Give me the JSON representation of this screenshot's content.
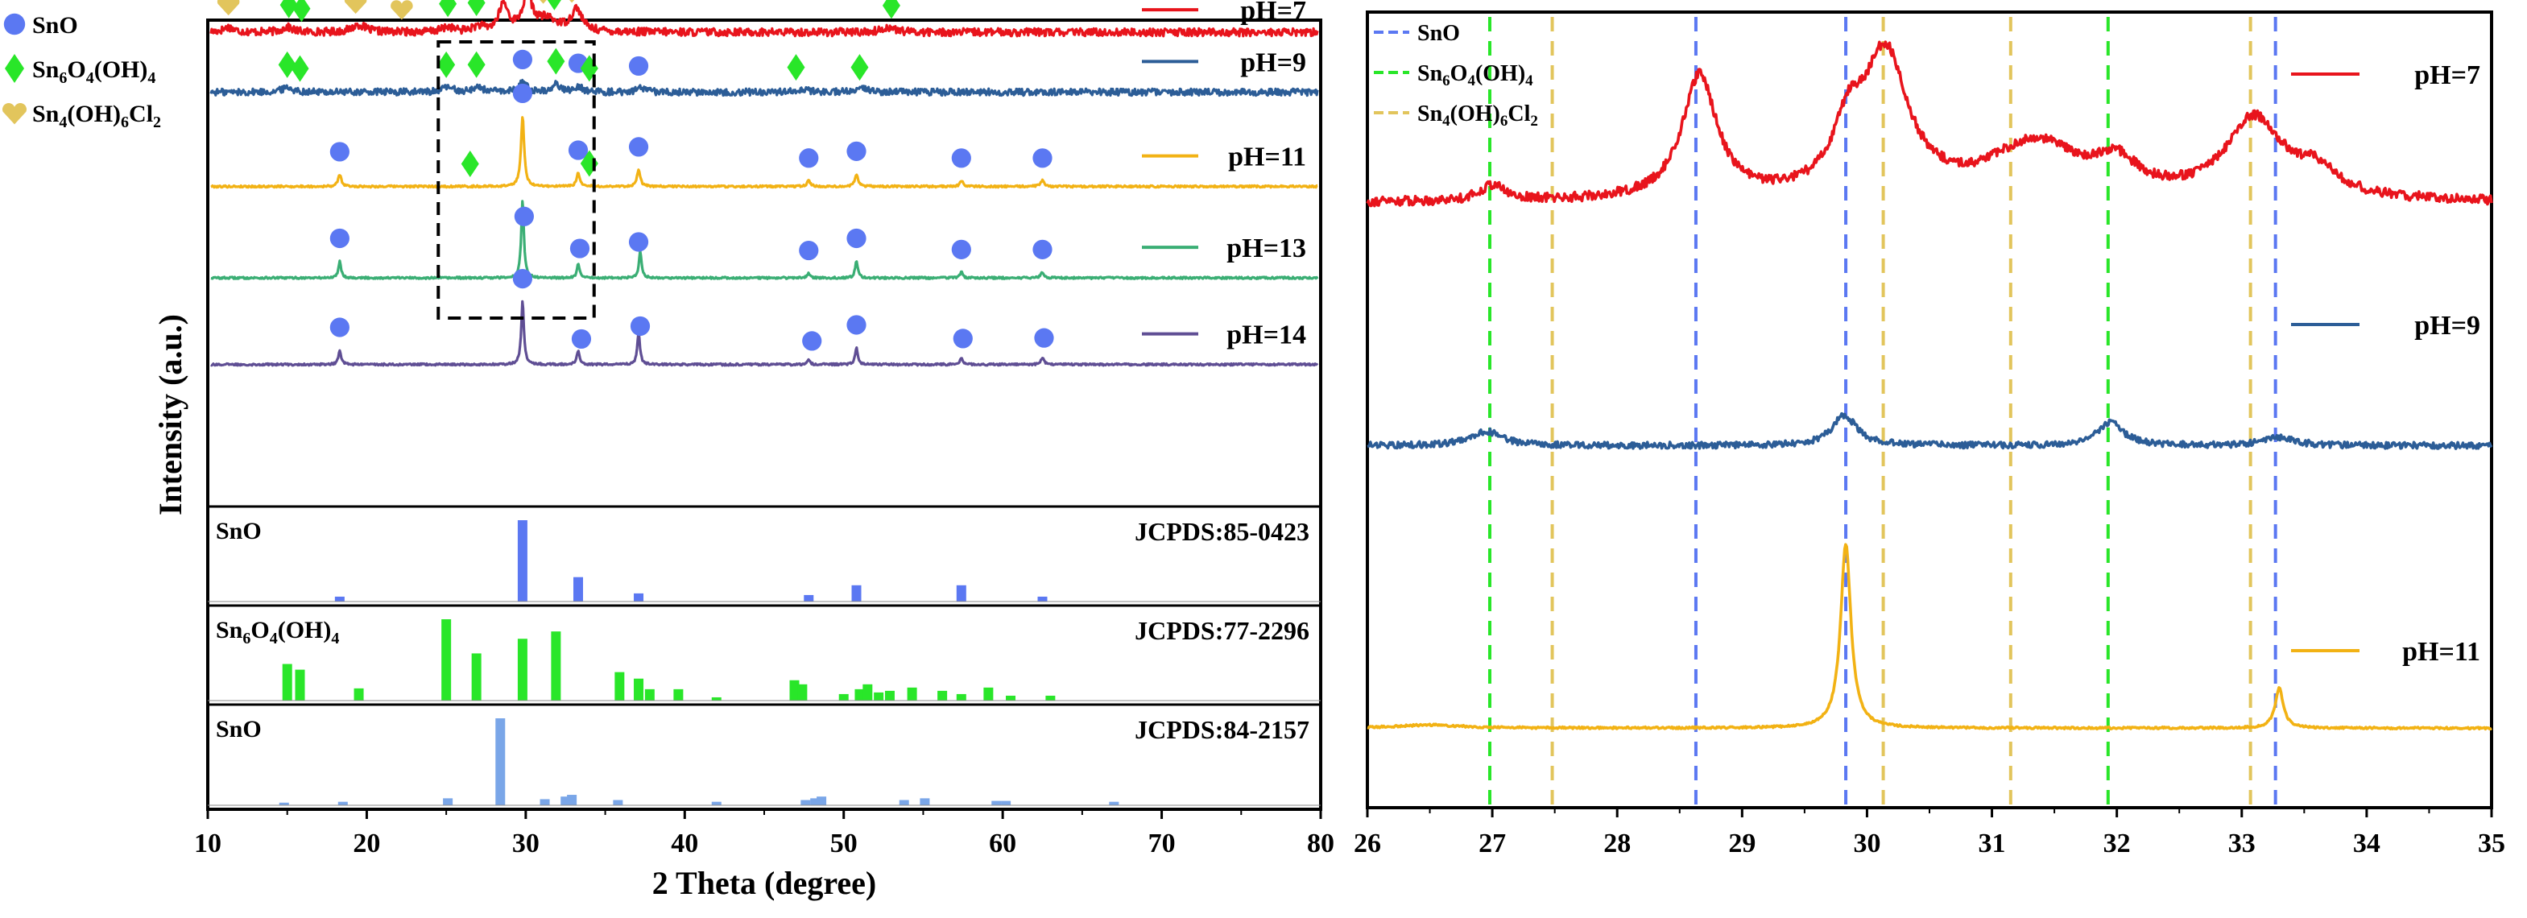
{
  "chart_data": [
    {
      "type": "line",
      "title": "",
      "xlabel": "2 Theta (degree)",
      "ylabel": "Intensity (a.u.)",
      "xlim": [
        10,
        80
      ],
      "x_ticks": [
        "10",
        "20",
        "30",
        "40",
        "50",
        "60",
        "70",
        "80"
      ],
      "legend": {
        "placement": "top-left",
        "entries": [
          {
            "marker": "circle",
            "color": "#5b78f2",
            "label_main": "SnO",
            "label_parts": [
              [
                "SnO",
                ""
              ]
            ]
          },
          {
            "marker": "diamond",
            "color": "#29e629",
            "label_main": "Sn6O4(OH)4",
            "label_parts": [
              [
                "Sn",
                ""
              ],
              [
                "6",
                "sub"
              ],
              [
                "O",
                ""
              ],
              [
                "4",
                "sub"
              ],
              [
                "(OH)",
                ""
              ],
              [
                "4",
                "sub"
              ]
            ]
          },
          {
            "marker": "heart",
            "color": "#e2c55c",
            "label_main": "Sn4(OH)6Cl2",
            "label_parts": [
              [
                "Sn",
                ""
              ],
              [
                "4",
                "sub"
              ],
              [
                "(OH)",
                ""
              ],
              [
                "6",
                "sub"
              ],
              [
                "Cl",
                ""
              ],
              [
                "2",
                "sub"
              ]
            ]
          }
        ]
      },
      "series": [
        {
          "name": "pH=7",
          "color": "#e8141c",
          "baseline": 0.975,
          "noise": 0.008,
          "peaks": [
            [
              11.3,
              0.01,
              0.4
            ],
            [
              15,
              0.01,
              0.4
            ],
            [
              19.5,
              0.015,
              0.5
            ],
            [
              25.1,
              0.01,
              0.4
            ],
            [
              27,
              0.01,
              0.4
            ],
            [
              28.6,
              0.055,
              0.35
            ],
            [
              30.1,
              0.07,
              0.35
            ],
            [
              31.3,
              0.025,
              0.9
            ],
            [
              33.2,
              0.045,
              0.4
            ],
            [
              52.8,
              0.01,
              0.5
            ]
          ],
          "markers": [
            {
              "type": "heart",
              "x": 11.3
            },
            {
              "type": "diamond",
              "x": 15.1
            },
            {
              "type": "diamond",
              "x": 15.9
            },
            {
              "type": "heart",
              "x": 19.3
            },
            {
              "type": "heart",
              "x": 22.2
            },
            {
              "type": "diamond",
              "x": 25.1
            },
            {
              "type": "diamond",
              "x": 26.9
            },
            {
              "type": "circle",
              "x": 28.5
            },
            {
              "type": "circle",
              "x": 30.0
            },
            {
              "type": "heart",
              "x": 31.1
            },
            {
              "type": "diamond",
              "x": 31.8
            },
            {
              "type": "heart",
              "x": 32.9
            },
            {
              "type": "diamond",
              "x": 53.0
            }
          ]
        },
        {
          "name": "pH=9",
          "color": "#2c5d97",
          "baseline": 0.852,
          "noise": 0.007,
          "peaks": [
            [
              15,
              0.01,
              0.4
            ],
            [
              25.1,
              0.01,
              0.4
            ],
            [
              27,
              0.01,
              0.4
            ],
            [
              29.8,
              0.02,
              0.3
            ],
            [
              31.9,
              0.016,
              0.3
            ],
            [
              33.3,
              0.012,
              0.3
            ],
            [
              37.2,
              0.008,
              0.3
            ],
            [
              47.3,
              0.006,
              0.5
            ],
            [
              51.3,
              0.006,
              0.5
            ]
          ],
          "markers": [
            {
              "type": "diamond",
              "x": 15.0
            },
            {
              "type": "diamond",
              "x": 15.8
            },
            {
              "type": "diamond",
              "x": 25.0
            },
            {
              "type": "diamond",
              "x": 26.9
            },
            {
              "type": "circle",
              "x": 29.8
            },
            {
              "type": "diamond",
              "x": 31.9
            },
            {
              "type": "circle",
              "x": 33.3
            },
            {
              "type": "diamond",
              "x": 34.0
            },
            {
              "type": "circle",
              "x": 37.1
            },
            {
              "type": "diamond",
              "x": 47.0
            },
            {
              "type": "diamond",
              "x": 51.0
            }
          ]
        },
        {
          "name": "pH=11",
          "color": "#f2b214",
          "baseline": 0.658,
          "noise": 0.002,
          "peaks": [
            [
              18.3,
              0.025,
              0.12
            ],
            [
              29.8,
              0.145,
              0.12
            ],
            [
              33.3,
              0.028,
              0.12
            ],
            [
              37.1,
              0.035,
              0.12
            ],
            [
              47.8,
              0.012,
              0.12
            ],
            [
              50.8,
              0.026,
              0.12
            ],
            [
              57.4,
              0.012,
              0.12
            ],
            [
              62.5,
              0.012,
              0.14
            ]
          ],
          "markers": [
            {
              "type": "circle",
              "x": 18.3
            },
            {
              "type": "diamond",
              "x": 26.5
            },
            {
              "type": "circle",
              "x": 29.8
            },
            {
              "type": "circle",
              "x": 33.3
            },
            {
              "type": "diamond",
              "x": 34.0
            },
            {
              "type": "circle",
              "x": 37.1
            },
            {
              "type": "circle",
              "x": 47.8
            },
            {
              "type": "circle",
              "x": 50.8
            },
            {
              "type": "circle",
              "x": 57.4
            },
            {
              "type": "circle",
              "x": 62.5
            }
          ]
        },
        {
          "name": "pH=13",
          "color": "#3aae74",
          "baseline": 0.47,
          "noise": 0.002,
          "peaks": [
            [
              18.3,
              0.035,
              0.1
            ],
            [
              29.8,
              0.16,
              0.1
            ],
            [
              33.3,
              0.028,
              0.1
            ],
            [
              37.2,
              0.055,
              0.1
            ],
            [
              47.8,
              0.01,
              0.1
            ],
            [
              50.8,
              0.035,
              0.1
            ],
            [
              57.4,
              0.012,
              0.1
            ],
            [
              62.5,
              0.012,
              0.12
            ]
          ],
          "markers": [
            {
              "type": "circle",
              "x": 18.3
            },
            {
              "type": "circle",
              "x": 29.9
            },
            {
              "type": "circle",
              "x": 33.4
            },
            {
              "type": "circle",
              "x": 37.1
            },
            {
              "type": "circle",
              "x": 47.8
            },
            {
              "type": "circle",
              "x": 50.8
            },
            {
              "type": "circle",
              "x": 57.4
            },
            {
              "type": "circle",
              "x": 62.5
            }
          ]
        },
        {
          "name": "pH=14",
          "color": "#5f4e94",
          "baseline": 0.292,
          "noise": 0.002,
          "peaks": [
            [
              18.3,
              0.03,
              0.1
            ],
            [
              29.8,
              0.13,
              0.1
            ],
            [
              33.3,
              0.03,
              0.1
            ],
            [
              37.1,
              0.065,
              0.1
            ],
            [
              47.8,
              0.01,
              0.1
            ],
            [
              50.8,
              0.035,
              0.1
            ],
            [
              57.4,
              0.014,
              0.1
            ],
            [
              62.5,
              0.014,
              0.12
            ]
          ],
          "markers": [
            {
              "type": "circle",
              "x": 18.3
            },
            {
              "type": "circle",
              "x": 29.8
            },
            {
              "type": "circle",
              "x": 33.5
            },
            {
              "type": "circle",
              "x": 37.2
            },
            {
              "type": "circle",
              "x": 48.0
            },
            {
              "type": "circle",
              "x": 50.8
            },
            {
              "type": "circle",
              "x": 57.5
            },
            {
              "type": "circle",
              "x": 62.6
            }
          ]
        }
      ],
      "highlight_box": {
        "x_range": [
          24.5,
          34.3
        ]
      },
      "references": [
        {
          "label_parts": [
            [
              "SnO",
              ""
            ]
          ],
          "card": "JCPDS:85-0423",
          "color": "#5b78f2",
          "bars": [
            [
              18.3,
              0.06
            ],
            [
              29.8,
              1.0
            ],
            [
              33.3,
              0.3
            ],
            [
              37.1,
              0.1
            ],
            [
              47.8,
              0.08
            ],
            [
              50.8,
              0.2
            ],
            [
              57.4,
              0.2
            ],
            [
              62.5,
              0.06
            ]
          ]
        },
        {
          "label_parts": [
            [
              "Sn",
              ""
            ],
            [
              "6",
              "sub"
            ],
            [
              "O",
              ""
            ],
            [
              "4",
              "sub"
            ],
            [
              "(OH)",
              ""
            ],
            [
              "4",
              "sub"
            ]
          ],
          "card": "JCPDS:77-2296",
          "color": "#29e629",
          "bars": [
            [
              15,
              0.45
            ],
            [
              15.8,
              0.38
            ],
            [
              19.5,
              0.15
            ],
            [
              25,
              1.0
            ],
            [
              26.9,
              0.58
            ],
            [
              29.8,
              0.76
            ],
            [
              31.9,
              0.85
            ],
            [
              35.9,
              0.35
            ],
            [
              37.1,
              0.27
            ],
            [
              37.8,
              0.14
            ],
            [
              39.6,
              0.14
            ],
            [
              42,
              0.04
            ],
            [
              46.9,
              0.25
            ],
            [
              47.4,
              0.2
            ],
            [
              50,
              0.08
            ],
            [
              51,
              0.14
            ],
            [
              51.5,
              0.2
            ],
            [
              52.2,
              0.1
            ],
            [
              52.9,
              0.12
            ],
            [
              54.3,
              0.16
            ],
            [
              56.2,
              0.12
            ],
            [
              57.4,
              0.08
            ],
            [
              59.1,
              0.16
            ],
            [
              60.5,
              0.06
            ],
            [
              63,
              0.06
            ]
          ]
        },
        {
          "label_parts": [
            [
              "SnO",
              ""
            ]
          ],
          "card": "JCPDS:84-2157",
          "color": "#7aa6e8",
          "bars": [
            [
              14.8,
              0.03
            ],
            [
              18.5,
              0.04
            ],
            [
              25.1,
              0.08
            ],
            [
              28.4,
              1.0
            ],
            [
              31.2,
              0.07
            ],
            [
              32.5,
              0.1
            ],
            [
              32.9,
              0.12
            ],
            [
              35.8,
              0.06
            ],
            [
              42,
              0.04
            ],
            [
              47.6,
              0.06
            ],
            [
              48.2,
              0.08
            ],
            [
              48.6,
              0.1
            ],
            [
              53.8,
              0.06
            ],
            [
              55.1,
              0.08
            ],
            [
              59.6,
              0.05
            ],
            [
              60.2,
              0.05
            ],
            [
              67,
              0.04
            ]
          ]
        }
      ]
    },
    {
      "type": "line",
      "title": "",
      "xlabel": "",
      "ylabel": "",
      "xlim": [
        26,
        35
      ],
      "x_ticks": [
        "26",
        "27",
        "28",
        "29",
        "30",
        "31",
        "32",
        "33",
        "34",
        "35"
      ],
      "legend": {
        "placement": "top-left",
        "entries": [
          {
            "color": "#5b78f2",
            "label_main": "SnO",
            "label_parts": [
              [
                "SnO",
                ""
              ]
            ]
          },
          {
            "color": "#29e629",
            "label_main": "Sn6O4(OH)4",
            "label_parts": [
              [
                "Sn",
                ""
              ],
              [
                "6",
                "sub"
              ],
              [
                "O",
                ""
              ],
              [
                "4",
                "sub"
              ],
              [
                "(OH)",
                ""
              ],
              [
                "4",
                "sub"
              ]
            ]
          },
          {
            "color": "#e2c55c",
            "label_main": "Sn4(OH)6Cl2",
            "label_parts": [
              [
                "Sn",
                ""
              ],
              [
                "4",
                "sub"
              ],
              [
                "(OH)",
                ""
              ],
              [
                "6",
                "sub"
              ],
              [
                "Cl",
                ""
              ],
              [
                "2",
                "sub"
              ]
            ]
          }
        ]
      },
      "reference_lines": [
        {
          "x": 28.63,
          "color": "#5b78f2"
        },
        {
          "x": 29.83,
          "color": "#5b78f2"
        },
        {
          "x": 33.27,
          "color": "#5b78f2"
        },
        {
          "x": 26.98,
          "color": "#29e629"
        },
        {
          "x": 31.93,
          "color": "#29e629"
        },
        {
          "x": 27.48,
          "color": "#e2c55c"
        },
        {
          "x": 30.13,
          "color": "#e2c55c"
        },
        {
          "x": 31.15,
          "color": "#e2c55c"
        },
        {
          "x": 33.07,
          "color": "#e2c55c"
        }
      ],
      "series": [
        {
          "name": "pH=7",
          "color": "#e8141c",
          "baseline": 0.76,
          "noise": 0.006,
          "peaks": [
            [
              27,
              0.02,
              0.12
            ],
            [
              28.66,
              0.155,
              0.17
            ],
            [
              30.15,
              0.175,
              0.22
            ],
            [
              29.85,
              0.07,
              0.15
            ],
            [
              31.35,
              0.07,
              0.45
            ],
            [
              32.0,
              0.035,
              0.2
            ],
            [
              33.1,
              0.1,
              0.28
            ],
            [
              33.6,
              0.03,
              0.2
            ]
          ]
        },
        {
          "name": "pH=9",
          "color": "#2c5d97",
          "baseline": 0.455,
          "noise": 0.004,
          "peaks": [
            [
              26.95,
              0.018,
              0.15
            ],
            [
              29.82,
              0.038,
              0.12
            ],
            [
              31.95,
              0.03,
              0.12
            ],
            [
              33.3,
              0.01,
              0.15
            ]
          ]
        },
        {
          "name": "pH=11",
          "color": "#f2b214",
          "baseline": 0.1,
          "noise": 0.0012,
          "peaks": [
            [
              29.83,
              0.232,
              0.05
            ],
            [
              33.3,
              0.05,
              0.04
            ],
            [
              26.5,
              0.004,
              0.3
            ]
          ]
        }
      ]
    }
  ]
}
